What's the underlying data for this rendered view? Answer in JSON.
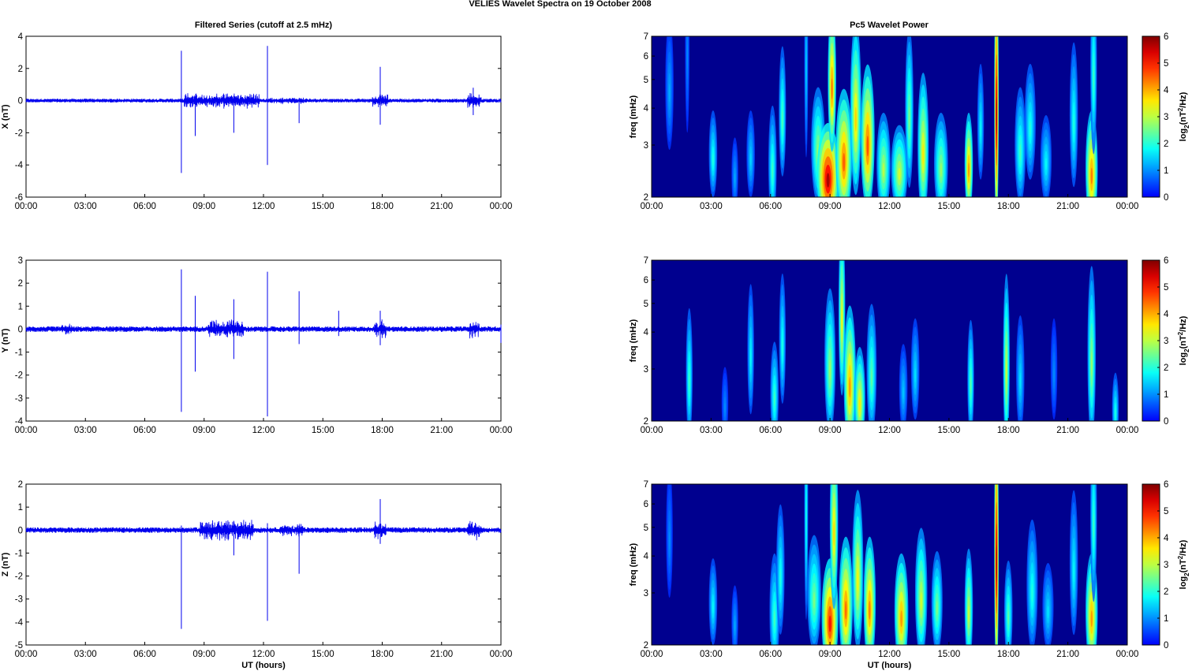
{
  "figure_title": "VELIES Wavelet Spectra on 19 October   2008",
  "left_column_title": "Filtered Series (cutoff at 2.5 mHz)",
  "right_column_title": "Pc5 Wavelet Power",
  "xlabel": "UT (hours)",
  "colorbar_label_prefix": "log",
  "colorbar_label_sub": "2",
  "colorbar_label_mid": "(nT",
  "colorbar_label_sup": "2",
  "colorbar_label_suffix": "/Hz)",
  "colors": {
    "trace": "#0000ee",
    "spectrum_background": "#00008f"
  },
  "chart_data": [
    {
      "type": "line",
      "title": "Filtered Series (cutoff at 2.5 mHz)",
      "xlabel": "",
      "ylabel": "X (nT)",
      "xlim": [
        0,
        24
      ],
      "ylim": [
        -6,
        4
      ],
      "xticks": [
        "00:00",
        "03:00",
        "06:00",
        "09:00",
        "12:00",
        "15:00",
        "18:00",
        "21:00",
        "00:00"
      ],
      "yticks": [
        -6,
        -4,
        -2,
        0,
        2,
        4
      ],
      "series": [
        {
          "baseline_amplitude": 0.12,
          "disturbed_intervals": [
            {
              "start": 8.0,
              "end": 11.8,
              "amplitude": 0.35
            },
            {
              "start": 12.3,
              "end": 14.2,
              "amplitude": 0.15
            },
            {
              "start": 17.5,
              "end": 18.3,
              "amplitude": 0.3
            },
            {
              "start": 22.3,
              "end": 23.0,
              "amplitude": 0.35
            }
          ],
          "spikes": [
            {
              "x": 7.85,
              "ymax": 3.1,
              "ymin": -4.5
            },
            {
              "x": 8.55,
              "ymax": 0.1,
              "ymin": -2.2
            },
            {
              "x": 10.5,
              "ymax": 0.3,
              "ymin": -2.0
            },
            {
              "x": 12.2,
              "ymax": 3.4,
              "ymin": -4.0
            },
            {
              "x": 13.8,
              "ymax": 0.1,
              "ymin": -1.4
            },
            {
              "x": 17.9,
              "ymax": 2.1,
              "ymin": -1.5
            },
            {
              "x": 22.6,
              "ymax": 0.8,
              "ymin": -0.9
            }
          ]
        }
      ]
    },
    {
      "type": "line",
      "title": "",
      "xlabel": "",
      "ylabel": "Y (nT)",
      "xlim": [
        0,
        24
      ],
      "ylim": [
        -4,
        3
      ],
      "xticks": [
        "00:00",
        "03:00",
        "06:00",
        "09:00",
        "12:00",
        "15:00",
        "18:00",
        "21:00",
        "00:00"
      ],
      "yticks": [
        -4,
        -3,
        -2,
        -1,
        0,
        1,
        2,
        3
      ],
      "series": [
        {
          "baseline_amplitude": 0.12,
          "disturbed_intervals": [
            {
              "start": 1.8,
              "end": 2.3,
              "amplitude": 0.18
            },
            {
              "start": 9.2,
              "end": 11.0,
              "amplitude": 0.3
            },
            {
              "start": 17.6,
              "end": 18.2,
              "amplitude": 0.3
            },
            {
              "start": 22.4,
              "end": 22.9,
              "amplitude": 0.3
            }
          ],
          "spikes": [
            {
              "x": 7.85,
              "ymax": 2.6,
              "ymin": -3.6
            },
            {
              "x": 8.55,
              "ymax": 1.45,
              "ymin": -1.85
            },
            {
              "x": 10.5,
              "ymax": 1.3,
              "ymin": -1.3
            },
            {
              "x": 12.2,
              "ymax": 2.5,
              "ymin": -3.8
            },
            {
              "x": 13.8,
              "ymax": 1.65,
              "ymin": -0.65
            },
            {
              "x": 15.8,
              "ymax": 0.8,
              "ymin": -0.3
            },
            {
              "x": 17.9,
              "ymax": 0.8,
              "ymin": -0.7
            },
            {
              "x": 24.0,
              "ymax": 0.2,
              "ymin": -0.6
            }
          ]
        }
      ]
    },
    {
      "type": "line",
      "title": "",
      "xlabel": "UT (hours)",
      "ylabel": "Z (nT)",
      "xlim": [
        0,
        24
      ],
      "ylim": [
        -5,
        2
      ],
      "xticks": [
        "00:00",
        "03:00",
        "06:00",
        "09:00",
        "12:00",
        "15:00",
        "18:00",
        "21:00",
        "00:00"
      ],
      "yticks": [
        -5,
        -4,
        -3,
        -2,
        -1,
        0,
        1,
        2
      ],
      "series": [
        {
          "baseline_amplitude": 0.12,
          "disturbed_intervals": [
            {
              "start": 8.8,
              "end": 11.5,
              "amplitude": 0.35
            },
            {
              "start": 12.8,
              "end": 14.0,
              "amplitude": 0.2
            },
            {
              "start": 17.6,
              "end": 18.2,
              "amplitude": 0.3
            },
            {
              "start": 22.3,
              "end": 23.0,
              "amplitude": 0.3
            }
          ],
          "spikes": [
            {
              "x": 7.85,
              "ymax": 0.2,
              "ymin": -4.3
            },
            {
              "x": 10.5,
              "ymax": 0.4,
              "ymin": -1.1
            },
            {
              "x": 12.2,
              "ymax": 0.3,
              "ymin": -3.95
            },
            {
              "x": 13.8,
              "ymax": 0.2,
              "ymin": -1.9
            },
            {
              "x": 17.9,
              "ymax": 1.35,
              "ymin": -0.6
            }
          ]
        }
      ]
    },
    {
      "type": "heatmap",
      "title": "Pc5 Wavelet Power",
      "xlabel": "",
      "ylabel": "freq (mHz)",
      "xlim": [
        0,
        24
      ],
      "ylim": [
        2,
        7
      ],
      "yscale": "log",
      "xticks": [
        "00:00",
        "03:00",
        "06:00",
        "09:00",
        "12:00",
        "15:00",
        "18:00",
        "21:00",
        "00:00"
      ],
      "yticks": [
        2,
        3,
        4,
        5,
        6,
        7
      ],
      "colorbar": {
        "min": 0,
        "max": 6,
        "ticks": [
          0,
          1,
          2,
          3,
          4,
          5,
          6
        ]
      },
      "blobs": [
        {
          "t": 0.9,
          "f": 4.8,
          "p": 1.2,
          "w": 0.15,
          "h": 0.45
        },
        {
          "t": 1.8,
          "f": 6.5,
          "p": 1.0,
          "w": 0.08,
          "h": 0.6
        },
        {
          "t": 3.1,
          "f": 2.8,
          "p": 2.0,
          "w": 0.15,
          "h": 0.3
        },
        {
          "t": 4.2,
          "f": 2.4,
          "p": 1.2,
          "w": 0.12,
          "h": 0.25
        },
        {
          "t": 5.0,
          "f": 2.8,
          "p": 1.5,
          "w": 0.15,
          "h": 0.3
        },
        {
          "t": 6.1,
          "f": 2.6,
          "p": 2.2,
          "w": 0.15,
          "h": 0.4
        },
        {
          "t": 6.6,
          "f": 3.9,
          "p": 2.3,
          "w": 0.13,
          "h": 0.45
        },
        {
          "t": 7.8,
          "f": 6.0,
          "p": 1.5,
          "w": 0.07,
          "h": 0.7
        },
        {
          "t": 8.4,
          "f": 3.0,
          "p": 2.8,
          "w": 0.25,
          "h": 0.4
        },
        {
          "t": 8.9,
          "f": 2.4,
          "p": 5.8,
          "w": 0.4,
          "h": 0.35
        },
        {
          "t": 9.1,
          "f": 5.0,
          "p": 4.5,
          "w": 0.15,
          "h": 0.5
        },
        {
          "t": 9.7,
          "f": 2.8,
          "p": 4.6,
          "w": 0.3,
          "h": 0.45
        },
        {
          "t": 10.3,
          "f": 4.0,
          "p": 3.8,
          "w": 0.2,
          "h": 0.6
        },
        {
          "t": 10.9,
          "f": 3.2,
          "p": 4.7,
          "w": 0.25,
          "h": 0.5
        },
        {
          "t": 11.7,
          "f": 2.6,
          "p": 3.0,
          "w": 0.25,
          "h": 0.35
        },
        {
          "t": 12.5,
          "f": 2.5,
          "p": 3.2,
          "w": 0.3,
          "h": 0.3
        },
        {
          "t": 13.0,
          "f": 4.0,
          "p": 2.6,
          "w": 0.15,
          "h": 0.55
        },
        {
          "t": 13.7,
          "f": 3.0,
          "p": 3.6,
          "w": 0.2,
          "h": 0.5
        },
        {
          "t": 14.6,
          "f": 2.6,
          "p": 2.8,
          "w": 0.25,
          "h": 0.35
        },
        {
          "t": 16.0,
          "f": 2.6,
          "p": 4.3,
          "w": 0.15,
          "h": 0.35
        },
        {
          "t": 16.6,
          "f": 3.6,
          "p": 1.8,
          "w": 0.12,
          "h": 0.4
        },
        {
          "t": 17.4,
          "f": 4.3,
          "p": 6.0,
          "w": 0.08,
          "h": 0.9
        },
        {
          "t": 18.6,
          "f": 3.0,
          "p": 2.2,
          "w": 0.2,
          "h": 0.4
        },
        {
          "t": 19.1,
          "f": 3.6,
          "p": 2.0,
          "w": 0.2,
          "h": 0.4
        },
        {
          "t": 19.9,
          "f": 2.7,
          "p": 1.8,
          "w": 0.2,
          "h": 0.3
        },
        {
          "t": 21.3,
          "f": 3.8,
          "p": 2.0,
          "w": 0.15,
          "h": 0.5
        },
        {
          "t": 22.2,
          "f": 2.5,
          "p": 4.4,
          "w": 0.22,
          "h": 0.4
        },
        {
          "t": 22.3,
          "f": 5.5,
          "p": 2.2,
          "w": 0.12,
          "h": 0.6
        }
      ]
    },
    {
      "type": "heatmap",
      "title": "",
      "xlabel": "",
      "ylabel": "freq (mHz)",
      "xlim": [
        0,
        24
      ],
      "ylim": [
        2,
        7
      ],
      "yscale": "log",
      "xticks": [
        "00:00",
        "03:00",
        "06:00",
        "09:00",
        "12:00",
        "15:00",
        "18:00",
        "21:00",
        "00:00"
      ],
      "yticks": [
        2,
        3,
        4,
        5,
        6,
        7
      ],
      "colorbar": {
        "min": 0,
        "max": 6,
        "ticks": [
          0,
          1,
          2,
          3,
          4,
          5,
          6
        ]
      },
      "blobs": [
        {
          "t": 1.9,
          "f": 2.9,
          "p": 2.2,
          "w": 0.12,
          "h": 0.45
        },
        {
          "t": 3.7,
          "f": 2.3,
          "p": 1.0,
          "w": 0.12,
          "h": 0.25
        },
        {
          "t": 5.0,
          "f": 3.5,
          "p": 1.8,
          "w": 0.12,
          "h": 0.45
        },
        {
          "t": 6.2,
          "f": 2.5,
          "p": 2.2,
          "w": 0.15,
          "h": 0.35
        },
        {
          "t": 6.6,
          "f": 3.8,
          "p": 2.0,
          "w": 0.12,
          "h": 0.45
        },
        {
          "t": 9.0,
          "f": 3.2,
          "p": 2.8,
          "w": 0.2,
          "h": 0.5
        },
        {
          "t": 9.6,
          "f": 4.8,
          "p": 3.5,
          "w": 0.12,
          "h": 0.6
        },
        {
          "t": 10.0,
          "f": 2.8,
          "p": 4.2,
          "w": 0.22,
          "h": 0.5
        },
        {
          "t": 10.5,
          "f": 2.4,
          "p": 3.6,
          "w": 0.2,
          "h": 0.35
        },
        {
          "t": 11.1,
          "f": 3.0,
          "p": 2.4,
          "w": 0.18,
          "h": 0.45
        },
        {
          "t": 12.7,
          "f": 2.6,
          "p": 1.4,
          "w": 0.15,
          "h": 0.3
        },
        {
          "t": 13.3,
          "f": 3.0,
          "p": 1.6,
          "w": 0.15,
          "h": 0.35
        },
        {
          "t": 16.1,
          "f": 2.8,
          "p": 2.4,
          "w": 0.12,
          "h": 0.4
        },
        {
          "t": 17.9,
          "f": 3.2,
          "p": 3.2,
          "w": 0.12,
          "h": 0.6
        },
        {
          "t": 18.6,
          "f": 2.9,
          "p": 1.6,
          "w": 0.15,
          "h": 0.4
        },
        {
          "t": 20.3,
          "f": 3.0,
          "p": 1.0,
          "w": 0.12,
          "h": 0.35
        },
        {
          "t": 22.2,
          "f": 3.4,
          "p": 2.8,
          "w": 0.15,
          "h": 0.6
        },
        {
          "t": 23.4,
          "f": 2.2,
          "p": 2.0,
          "w": 0.12,
          "h": 0.25
        }
      ]
    },
    {
      "type": "heatmap",
      "title": "",
      "xlabel": "UT (hours)",
      "ylabel": "freq (mHz)",
      "xlim": [
        0,
        24
      ],
      "ylim": [
        2,
        7
      ],
      "yscale": "log",
      "xticks": [
        "00:00",
        "03:00",
        "06:00",
        "09:00",
        "12:00",
        "15:00",
        "18:00",
        "21:00",
        "00:00"
      ],
      "yticks": [
        2,
        3,
        4,
        5,
        6,
        7
      ],
      "colorbar": {
        "min": 0,
        "max": 6,
        "ticks": [
          0,
          1,
          2,
          3,
          4,
          5,
          6
        ]
      },
      "blobs": [
        {
          "t": 0.9,
          "f": 4.8,
          "p": 1.0,
          "w": 0.12,
          "h": 0.45
        },
        {
          "t": 3.1,
          "f": 2.8,
          "p": 1.8,
          "w": 0.15,
          "h": 0.3
        },
        {
          "t": 4.2,
          "f": 2.4,
          "p": 1.2,
          "w": 0.12,
          "h": 0.25
        },
        {
          "t": 6.2,
          "f": 2.6,
          "p": 2.2,
          "w": 0.18,
          "h": 0.4
        },
        {
          "t": 6.5,
          "f": 3.6,
          "p": 2.0,
          "w": 0.15,
          "h": 0.45
        },
        {
          "t": 7.8,
          "f": 6.0,
          "p": 2.0,
          "w": 0.07,
          "h": 0.8
        },
        {
          "t": 8.2,
          "f": 3.0,
          "p": 2.6,
          "w": 0.25,
          "h": 0.4
        },
        {
          "t": 9.0,
          "f": 2.5,
          "p": 5.2,
          "w": 0.3,
          "h": 0.4
        },
        {
          "t": 9.2,
          "f": 5.2,
          "p": 3.8,
          "w": 0.15,
          "h": 0.6
        },
        {
          "t": 9.8,
          "f": 2.8,
          "p": 4.5,
          "w": 0.25,
          "h": 0.45
        },
        {
          "t": 10.4,
          "f": 3.6,
          "p": 3.5,
          "w": 0.2,
          "h": 0.55
        },
        {
          "t": 11.0,
          "f": 2.8,
          "p": 4.4,
          "w": 0.22,
          "h": 0.45
        },
        {
          "t": 12.6,
          "f": 2.6,
          "p": 4.2,
          "w": 0.25,
          "h": 0.4
        },
        {
          "t": 13.6,
          "f": 3.0,
          "p": 3.2,
          "w": 0.22,
          "h": 0.45
        },
        {
          "t": 14.4,
          "f": 2.8,
          "p": 2.6,
          "w": 0.2,
          "h": 0.35
        },
        {
          "t": 16.0,
          "f": 2.7,
          "p": 3.2,
          "w": 0.15,
          "h": 0.4
        },
        {
          "t": 17.4,
          "f": 4.3,
          "p": 6.0,
          "w": 0.08,
          "h": 0.9
        },
        {
          "t": 18.0,
          "f": 2.6,
          "p": 2.4,
          "w": 0.15,
          "h": 0.35
        },
        {
          "t": 19.2,
          "f": 3.2,
          "p": 2.0,
          "w": 0.2,
          "h": 0.45
        },
        {
          "t": 20.0,
          "f": 2.7,
          "p": 1.6,
          "w": 0.2,
          "h": 0.3
        },
        {
          "t": 21.3,
          "f": 3.8,
          "p": 1.8,
          "w": 0.15,
          "h": 0.5
        },
        {
          "t": 22.2,
          "f": 2.6,
          "p": 4.2,
          "w": 0.22,
          "h": 0.4
        },
        {
          "t": 22.3,
          "f": 5.5,
          "p": 2.2,
          "w": 0.12,
          "h": 0.6
        }
      ]
    }
  ]
}
